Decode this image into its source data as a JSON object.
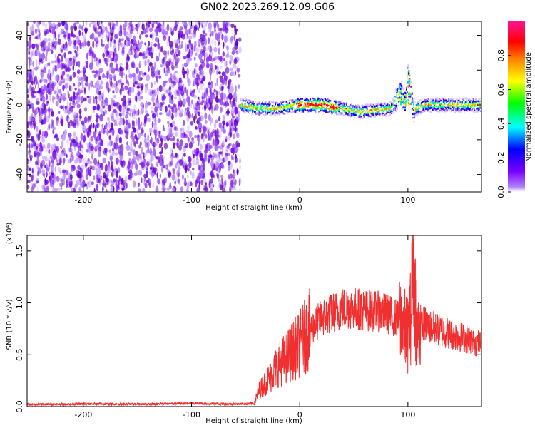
{
  "title": "GN02.2023.269.12.09.G06",
  "chart_data": [
    {
      "type": "heatmap",
      "title": "GN02.2023.269.12.09.G06",
      "xlabel": "Height of straight line (km)",
      "ylabel": "Frequency (Hz)",
      "xlim": [
        -252,
        168
      ],
      "ylim": [
        -50,
        48
      ],
      "xticks": [
        -200,
        -100,
        0,
        100
      ],
      "yticks": [
        -40,
        -20,
        0,
        20,
        40
      ],
      "noise_region_x": [
        -252,
        -55
      ],
      "signal_onset_x": -55,
      "signal_ridge": [
        {
          "x": -55,
          "y": 0
        },
        {
          "x": -40,
          "y": -2
        },
        {
          "x": -20,
          "y": -2
        },
        {
          "x": 0,
          "y": 0
        },
        {
          "x": 20,
          "y": 0
        },
        {
          "x": 40,
          "y": -2
        },
        {
          "x": 55,
          "y": -4
        },
        {
          "x": 70,
          "y": -3
        },
        {
          "x": 85,
          "y": -2
        },
        {
          "x": 93,
          "y": 8
        },
        {
          "x": 98,
          "y": 0
        },
        {
          "x": 100,
          "y": 18
        },
        {
          "x": 105,
          "y": -3
        },
        {
          "x": 115,
          "y": 0
        },
        {
          "x": 140,
          "y": 0
        },
        {
          "x": 168,
          "y": 0
        }
      ],
      "colorbar": {
        "label": "Normalized spectral amplitude",
        "range": [
          0.0,
          1.0
        ],
        "ticks": [
          0.0,
          0.2,
          0.4,
          0.6,
          0.8
        ],
        "tick_labels": [
          "0.0",
          "0.2",
          "0.4",
          "0.6",
          "0.8"
        ],
        "colors": [
          "#ffffff",
          "#7a00ff",
          "#0000ff",
          "#00ffff",
          "#00ff00",
          "#ffff00",
          "#ff7f00",
          "#ff0000",
          "#ff1493"
        ]
      }
    },
    {
      "type": "line",
      "xlabel": "Height of straight line (km)",
      "ylabel": "SNR (10 * v/v)",
      "y_scale_note": "(x10⁴)",
      "xlim": [
        -252,
        168
      ],
      "ylim": [
        0,
        16500
      ],
      "xticks": [
        -200,
        -100,
        0,
        100
      ],
      "yticks": [
        0,
        5000,
        10000,
        15000
      ],
      "ytick_labels": [
        "0.0",
        "0.5",
        "1.0",
        "1.5"
      ],
      "color": "#f03030",
      "series": [
        {
          "x": [
            -252,
            -200,
            -150,
            -100,
            -60,
            -42,
            -38,
            -30,
            -20,
            -10,
            0,
            10,
            20,
            30,
            40,
            50,
            60,
            70,
            80,
            90,
            95,
            100,
            103,
            105,
            108,
            115,
            125,
            140,
            155,
            168
          ],
          "y": [
            200,
            250,
            230,
            300,
            250,
            300,
            1500,
            2500,
            4000,
            5000,
            6000,
            7500,
            8500,
            9000,
            9500,
            9500,
            9300,
            9200,
            9000,
            8500,
            8000,
            7000,
            9000,
            16000,
            7000,
            8000,
            7500,
            7000,
            6500,
            6000
          ]
        }
      ]
    }
  ]
}
